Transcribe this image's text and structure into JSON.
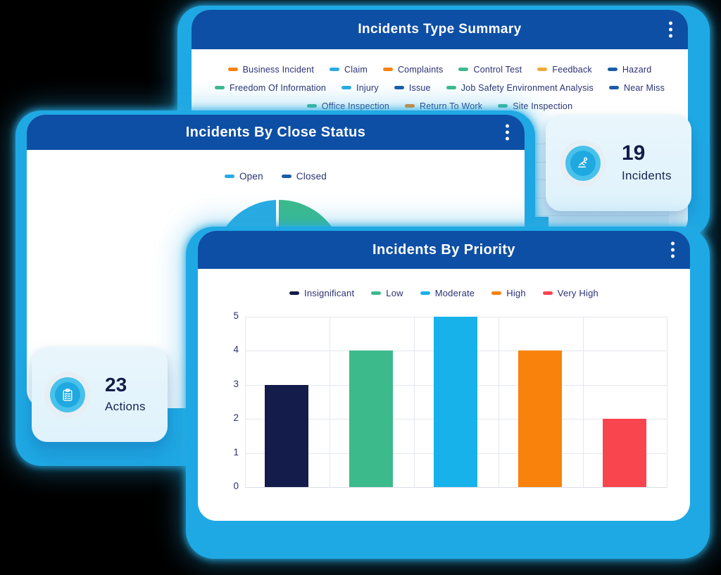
{
  "colors": {
    "header_bar": "#0D4FA5",
    "backing_blue": "#1FA9E4",
    "card_bg": "#FFFFFF",
    "stat_card_bg": "#E3F3FB",
    "legend_text": "#2A3173",
    "value_text": "#131C4A",
    "gridline": "#E4E7EF"
  },
  "cards": {
    "type_summary": {
      "title": "Incidents Type Summary",
      "legend_rows": [
        [
          {
            "label": "Business Incident",
            "color": "#F8820C"
          },
          {
            "label": "Claim",
            "color": "#29ABE2"
          },
          {
            "label": "Complaints",
            "color": "#F8820C"
          },
          {
            "label": "Control Test",
            "color": "#3CBA8B"
          },
          {
            "label": "Feedback",
            "color": "#F0A93C"
          },
          {
            "label": "Hazard",
            "color": "#1A5CA8"
          }
        ],
        [
          {
            "label": "Freedom Of Information",
            "color": "#3CBA8B"
          },
          {
            "label": "Injury",
            "color": "#29ABE2"
          },
          {
            "label": "Issue",
            "color": "#1A5CA8"
          },
          {
            "label": "Job Safety Environment Analysis",
            "color": "#3CBA8B"
          },
          {
            "label": "Near Miss",
            "color": "#1A5CA8"
          }
        ],
        [
          {
            "label": "Office Inspection",
            "color": "#3CBA8B"
          },
          {
            "label": "Return To Work",
            "color": "#F8820C"
          },
          {
            "label": "Site Inspection",
            "color": "#3CBA8B"
          }
        ]
      ],
      "visible_fragment_bar_color": "#29ABE2"
    },
    "close_status": {
      "title": "Incidents By Close Status",
      "legend": [
        {
          "label": "Open",
          "color": "#29ABE2"
        },
        {
          "label": "Closed",
          "color": "#1A5CA8"
        }
      ],
      "pie_left_color": "#29ABE2",
      "pie_right_color": "#3CBA8B"
    },
    "priority": {
      "title": "Incidents By Priority",
      "legend": [
        {
          "label": "Insignificant",
          "color": "#131C4A"
        },
        {
          "label": "Low",
          "color": "#3CBA8B"
        },
        {
          "label": "Moderate",
          "color": "#18B2EA"
        },
        {
          "label": "High",
          "color": "#F8820C"
        },
        {
          "label": "Very High",
          "color": "#F9454E"
        }
      ]
    }
  },
  "stats": {
    "incidents": {
      "value": "19",
      "label": "Incidents"
    },
    "actions": {
      "value": "23",
      "label": "Actions"
    }
  },
  "chart_data": [
    {
      "id": "incidents-by-priority",
      "type": "bar",
      "title": "Incidents By Priority",
      "categories": [
        "Insignificant",
        "Low",
        "Moderate",
        "High",
        "Very High"
      ],
      "values": [
        3,
        4,
        5,
        4,
        2
      ],
      "colors": [
        "#131C4A",
        "#3CBA8B",
        "#18B2EA",
        "#F8820C",
        "#F9454E"
      ],
      "xlabel": "",
      "ylabel": "",
      "ylim": [
        0,
        5
      ],
      "yticks": [
        0,
        1,
        2,
        3,
        4,
        5
      ],
      "grid": true,
      "legend_position": "top"
    },
    {
      "id": "incidents-by-close-status",
      "type": "pie",
      "title": "Incidents By Close Status",
      "legend_entries": [
        "Open",
        "Closed"
      ],
      "slices": [
        {
          "label": "Open",
          "value_pct": 50,
          "color": "#29ABE2"
        },
        {
          "label": "Closed",
          "value_pct": 50,
          "color": "#3CBA8B"
        }
      ],
      "note": "only the top half of the pie is visible; halves appear equal (50/50)"
    },
    {
      "id": "incidents-type-summary",
      "type": "bar",
      "title": "Incidents Type Summary",
      "categories": [
        "Business Incident",
        "Claim",
        "Complaints",
        "Control Test",
        "Feedback",
        "Hazard",
        "Freedom Of Information",
        "Injury",
        "Issue",
        "Job Safety Environment Analysis",
        "Near Miss",
        "Office Inspection",
        "Return To Work",
        "Site Inspection"
      ],
      "values_visible": false,
      "note": "plot area hidden behind overlapping cards; only horizontal gridlines and one light-blue bar fragment are visible"
    }
  ]
}
